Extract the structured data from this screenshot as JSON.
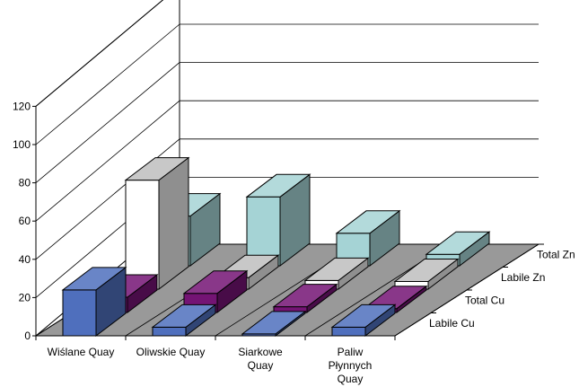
{
  "chart_data": {
    "type": "bar",
    "subtype": "3d-clustered-depth",
    "title": "",
    "xlabel": "",
    "ylabel": "",
    "ylim": [
      0,
      120
    ],
    "yticks": [
      0,
      20,
      40,
      60,
      80,
      100,
      120
    ],
    "grid": true,
    "categories": [
      "Wiślane Quay",
      "Oliwskie Quay",
      "Siarkowe Quay",
      "Paliw Płynnych Quay"
    ],
    "category_labels": [
      [
        "Wiślane Quay"
      ],
      [
        "Oliwskie Quay"
      ],
      [
        "Siarkowe",
        "Quay"
      ],
      [
        "Paliw",
        "Płynnych",
        "Quay"
      ]
    ],
    "series": [
      {
        "name": "Labile Cu",
        "values": [
          24,
          4.5,
          1,
          4.5
        ],
        "color": "#4f6fbd"
      },
      {
        "name": "Total Cu",
        "values": [
          8,
          10,
          3,
          2
        ],
        "color": "#741474"
      },
      {
        "name": "Labile Zn",
        "values": [
          57,
          6,
          4.5,
          4
        ],
        "color": "#ffffff"
      },
      {
        "name": "Total Zn",
        "values": [
          26,
          36,
          17,
          6
        ],
        "color": "#a5d3d5"
      }
    ]
  }
}
